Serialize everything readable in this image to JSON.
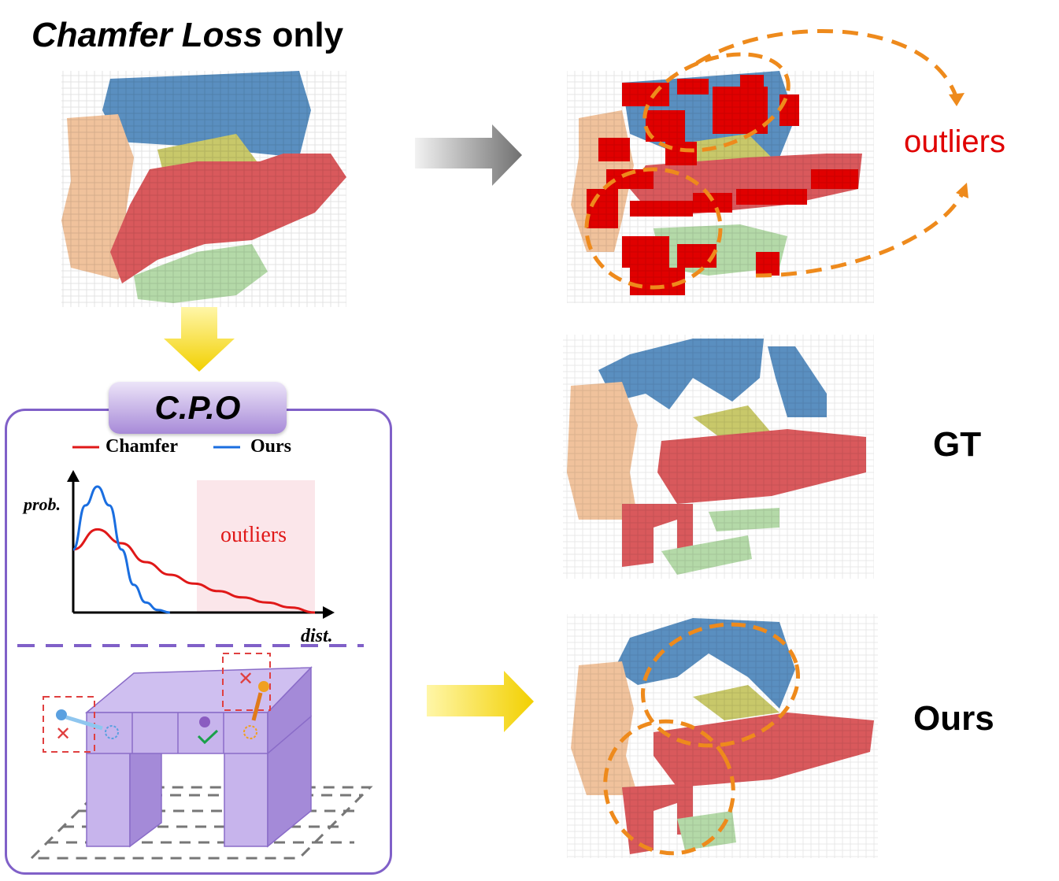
{
  "title": {
    "part1": "Chamfer Loss",
    "part2": " only"
  },
  "labels": {
    "outliers_top": "outliers",
    "gt": "GT",
    "ours": "Ours"
  },
  "cpo": {
    "badge": "C.P.O",
    "legend": {
      "chamfer": "Chamfer",
      "ours": "Ours"
    },
    "y_label": "prob.",
    "x_label": "dist.",
    "region_label": "outliers"
  },
  "colors": {
    "seg_blue": "#5a8fc0",
    "seg_red": "#d9595c",
    "seg_green": "#b4d9a8",
    "seg_yellow": "#c8c86a",
    "seg_tan": "#f0c29c",
    "outlier_red": "#e00000",
    "orange": "#ee8a1c",
    "purple": "#8060c8",
    "chamfer_line": "#e01818",
    "ours_line": "#1a6ee0"
  },
  "chart_data": {
    "type": "line",
    "series": [
      {
        "name": "Chamfer",
        "x": [
          0,
          1,
          2,
          3,
          4,
          5,
          6,
          7,
          8,
          9,
          10
        ],
        "y": [
          0.5,
          0.66,
          0.55,
          0.4,
          0.3,
          0.23,
          0.17,
          0.12,
          0.08,
          0.04,
          0.0
        ]
      },
      {
        "name": "Ours",
        "x": [
          0,
          0.5,
          1,
          1.5,
          2,
          2.5,
          3,
          3.5,
          4
        ],
        "y": [
          0.5,
          0.85,
          1.0,
          0.85,
          0.5,
          0.22,
          0.08,
          0.02,
          0.0
        ]
      }
    ],
    "xlabel": "dist.",
    "ylabel": "prob.",
    "annotations": [
      "outliers"
    ],
    "legend": "top",
    "grid": false
  }
}
